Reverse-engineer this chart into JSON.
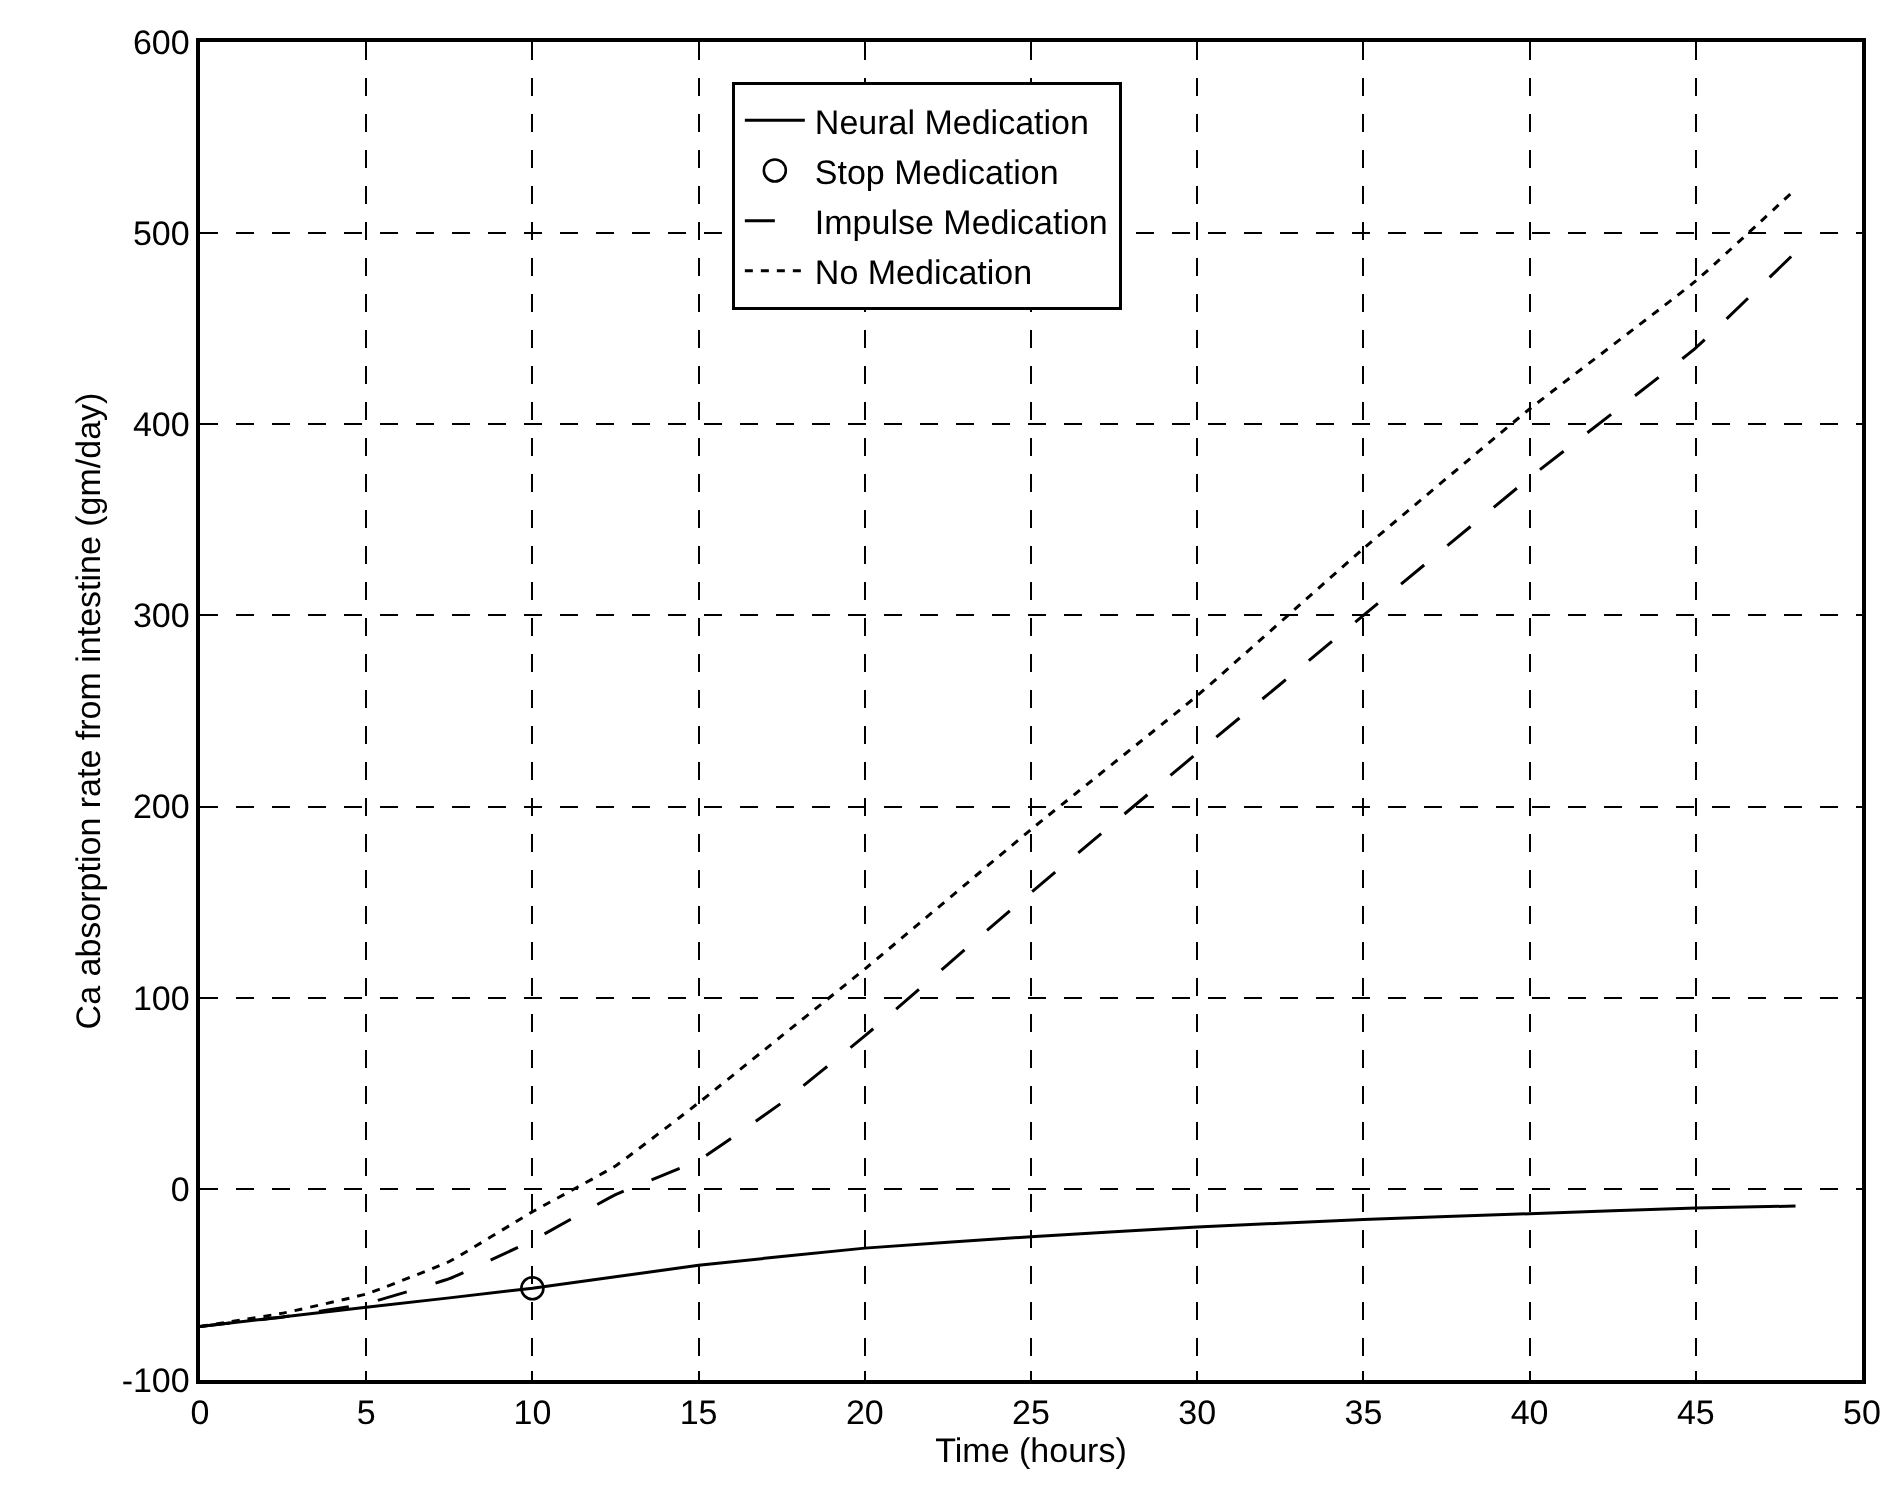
{
  "chart_data": {
    "type": "line",
    "xlabel": "Time (hours)",
    "ylabel": "Ca absorption rate from intestine (gm/day)",
    "xlim": [
      0,
      50
    ],
    "xticks": [
      0,
      5,
      10,
      15,
      20,
      25,
      30,
      35,
      40,
      45,
      50
    ],
    "ylim": [
      -100,
      600
    ],
    "yticks": [
      -100,
      0,
      100,
      200,
      300,
      400,
      500,
      600
    ],
    "grid": true,
    "legend": "top",
    "series": [
      {
        "name": "Neural Medication",
        "color": "#000000",
        "line_style": "solid",
        "marker": "none",
        "x": [
          0,
          5,
          10,
          15,
          20,
          25,
          30,
          35,
          40,
          45,
          48
        ],
        "values": [
          -72,
          -62,
          -52,
          -40,
          -31,
          -25,
          -20,
          -16,
          -13,
          -10,
          -9
        ]
      },
      {
        "name": "Stop Medication",
        "type": "scatter",
        "color": "#000000",
        "marker": "circle",
        "x": [
          10
        ],
        "values": [
          -52
        ]
      },
      {
        "name": "Impulse Medication",
        "color": "#000000",
        "line_style": "dashed",
        "marker": "none",
        "x": [
          0,
          2.5,
          5,
          7.5,
          10,
          12.5,
          15,
          17.5,
          20,
          25,
          30,
          35,
          40,
          45,
          48
        ],
        "values": [
          -72,
          -67,
          -60,
          -47,
          -27,
          -3,
          15,
          45,
          80,
          155,
          228,
          300,
          372,
          440,
          490
        ]
      },
      {
        "name": "No Medication",
        "color": "#000000",
        "line_style": "dotted",
        "marker": "none",
        "x": [
          0,
          2.5,
          5,
          7.5,
          10,
          12.5,
          15,
          17.5,
          20,
          25,
          30,
          35,
          40,
          45,
          48
        ],
        "values": [
          -72,
          -65,
          -55,
          -38,
          -12,
          12,
          45,
          80,
          115,
          188,
          258,
          335,
          408,
          475,
          523
        ]
      }
    ]
  }
}
